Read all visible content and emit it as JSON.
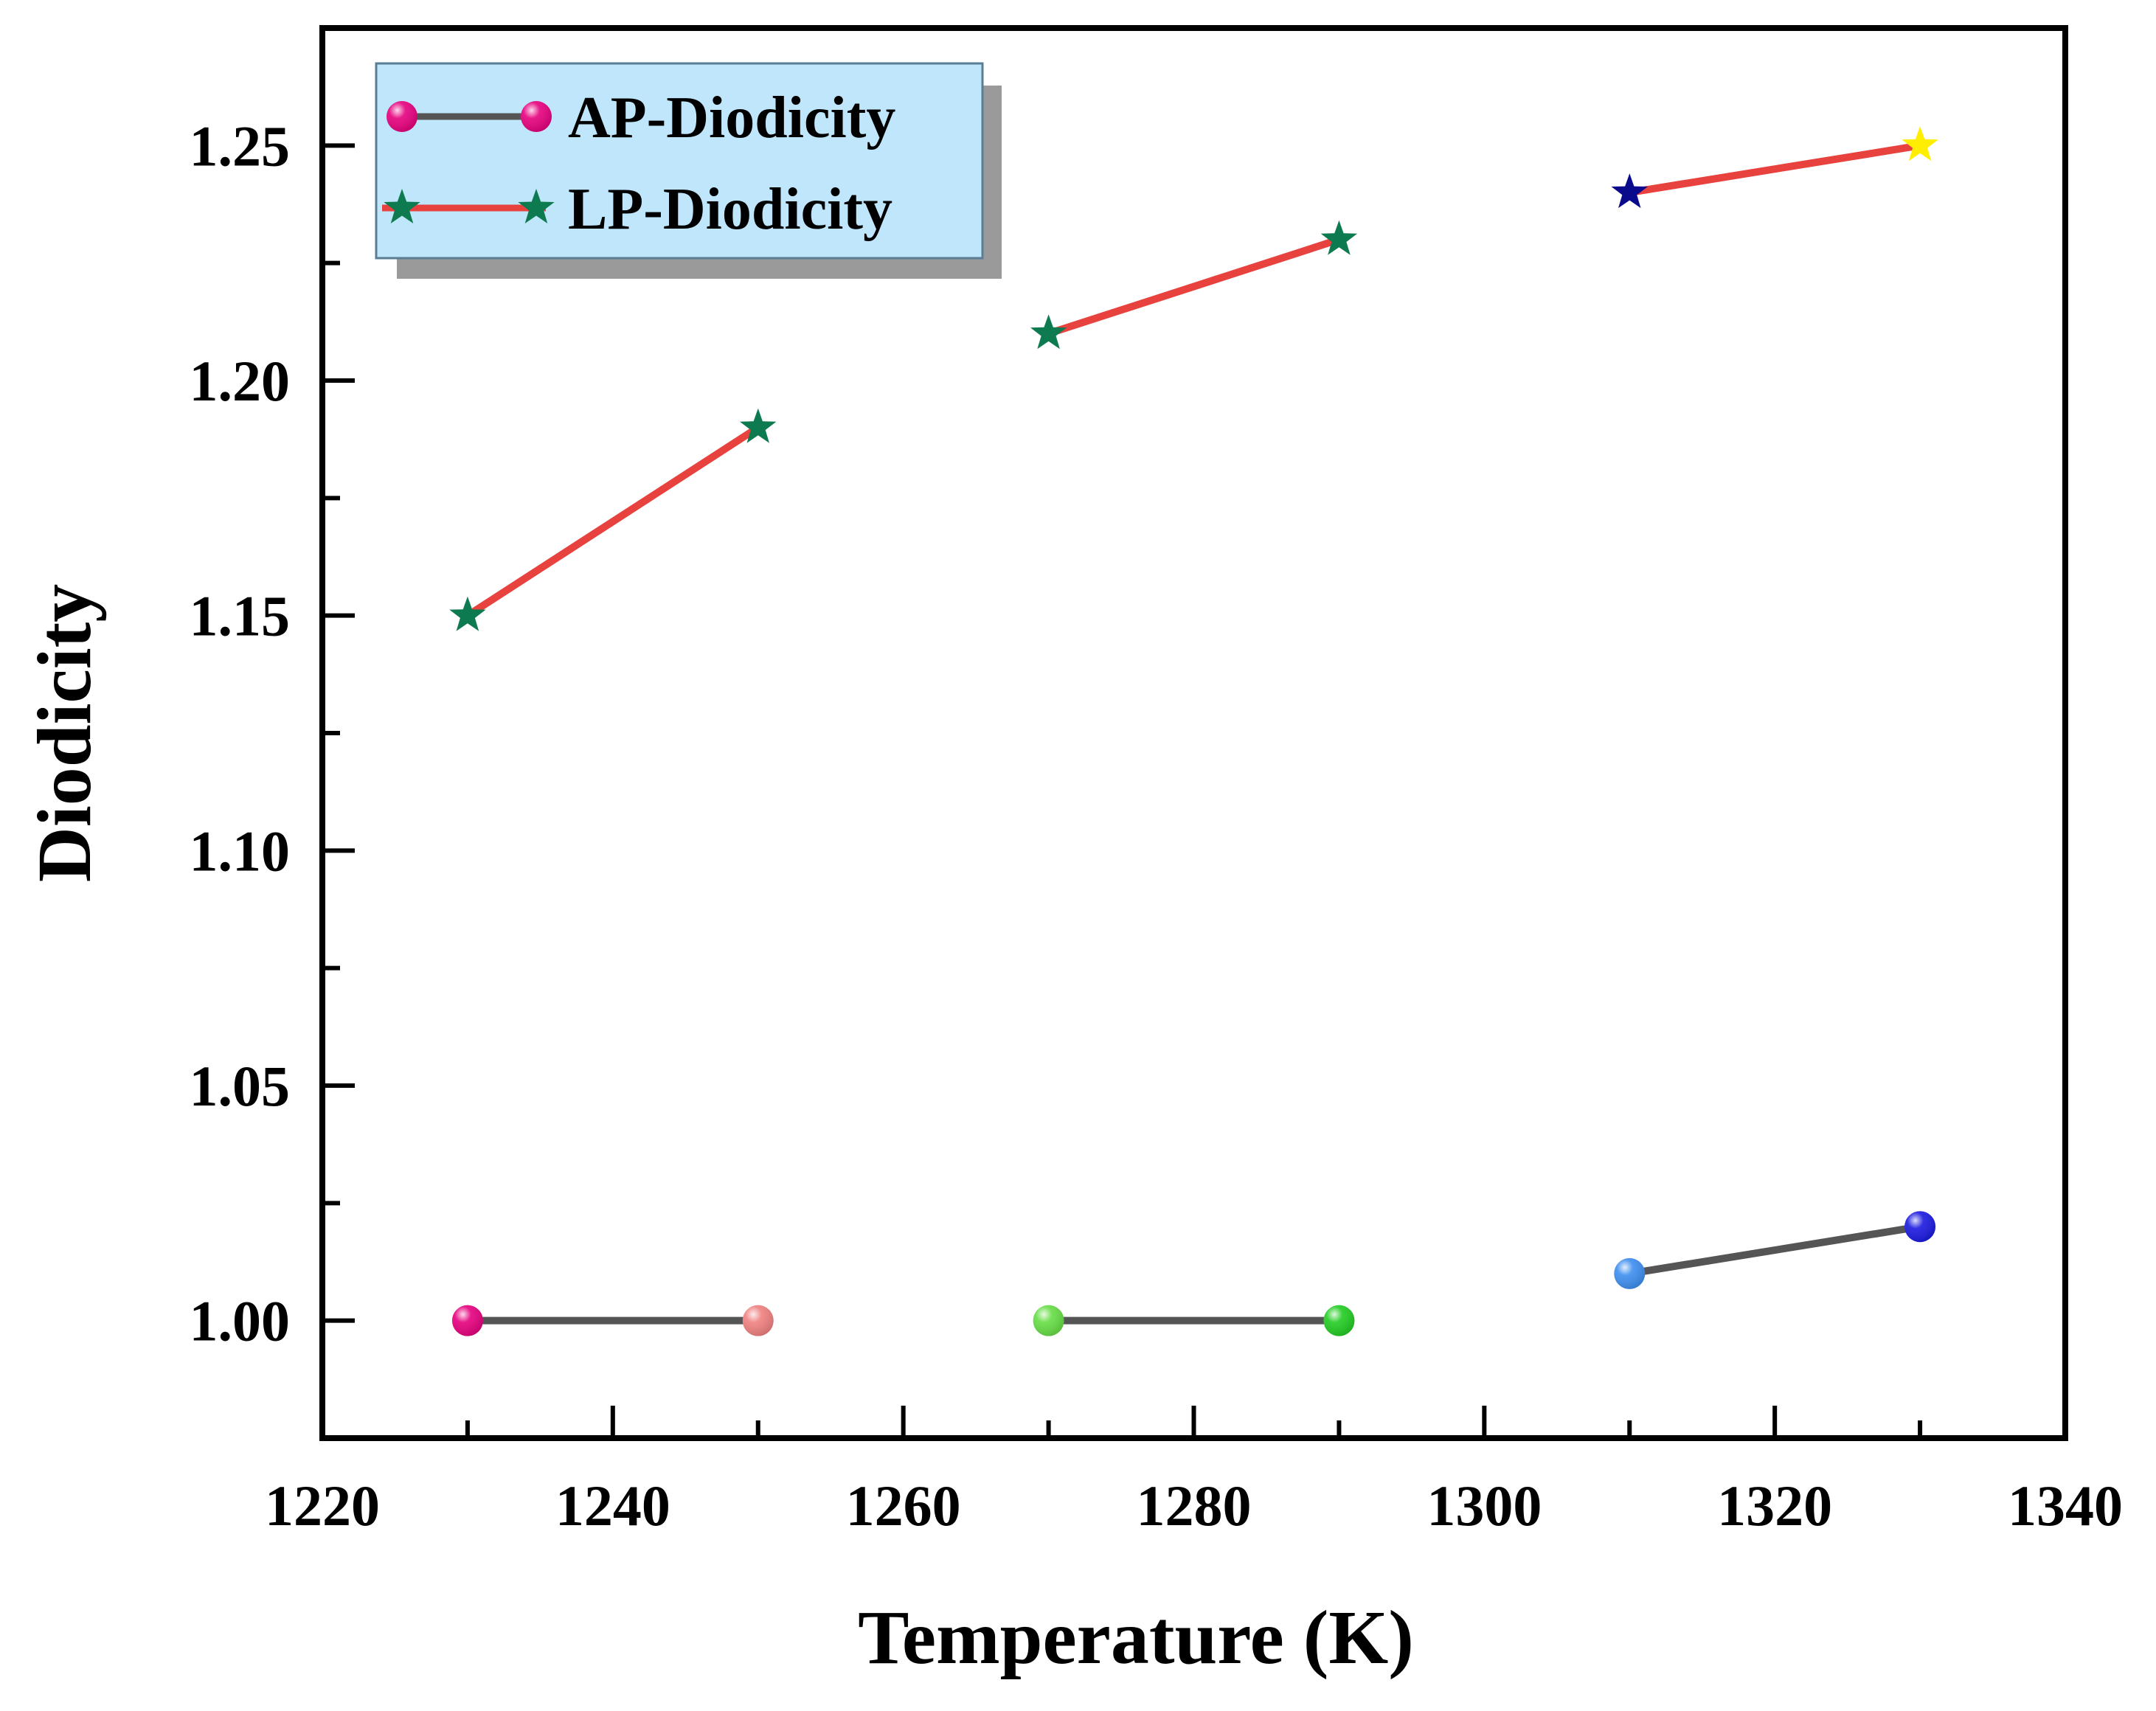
{
  "chart_data": {
    "type": "line",
    "title": "",
    "xlabel": "Temperature (K)",
    "ylabel": "Diodicity",
    "xlim": [
      1220,
      1340
    ],
    "ylim": [
      0.975,
      1.275
    ],
    "xticks": [
      1220,
      1240,
      1260,
      1280,
      1300,
      1320,
      1340
    ],
    "xtick_labels": [
      "1220",
      "1240",
      "1260",
      "1280",
      "1300",
      "1320",
      "1340"
    ],
    "yticks": [
      1.0,
      1.05,
      1.1,
      1.15,
      1.2,
      1.25
    ],
    "ytick_labels": [
      "1.00",
      "1.05",
      "1.10",
      "1.15",
      "1.20",
      "1.25"
    ],
    "grid": false,
    "legend_position": "top-left",
    "series": [
      {
        "name": "AP-Diodicity",
        "marker": "sphere",
        "line_color": "#555555",
        "legend_marker_color": "#e6007e",
        "segments": [
          [
            {
              "x": 1230,
              "y": 1.0,
              "color": "#e6007e"
            },
            {
              "x": 1250,
              "y": 1.0,
              "color": "#f08080"
            }
          ],
          [
            {
              "x": 1270,
              "y": 1.0,
              "color": "#66dd44"
            },
            {
              "x": 1290,
              "y": 1.0,
              "color": "#22cc22"
            }
          ],
          [
            {
              "x": 1310,
              "y": 1.01,
              "color": "#3d8ef0"
            },
            {
              "x": 1330,
              "y": 1.02,
              "color": "#1a1ae0"
            }
          ]
        ]
      },
      {
        "name": "LP-Diodicity",
        "marker": "star",
        "line_color": "#e8423f",
        "legend_marker_color": "#0e7a50",
        "segments": [
          [
            {
              "x": 1230,
              "y": 1.15,
              "color": "#0e7a50"
            },
            {
              "x": 1250,
              "y": 1.19,
              "color": "#0e7a50"
            }
          ],
          [
            {
              "x": 1270,
              "y": 1.21,
              "color": "#0e7a50"
            },
            {
              "x": 1290,
              "y": 1.23,
              "color": "#0e7a50"
            }
          ],
          [
            {
              "x": 1310,
              "y": 1.24,
              "color": "#0a0a8c"
            },
            {
              "x": 1330,
              "y": 1.25,
              "color": "#ffee00"
            }
          ]
        ]
      }
    ],
    "legend_box_color": "#bfe6fb",
    "legend_shadow_color": "#9a9a9a"
  }
}
